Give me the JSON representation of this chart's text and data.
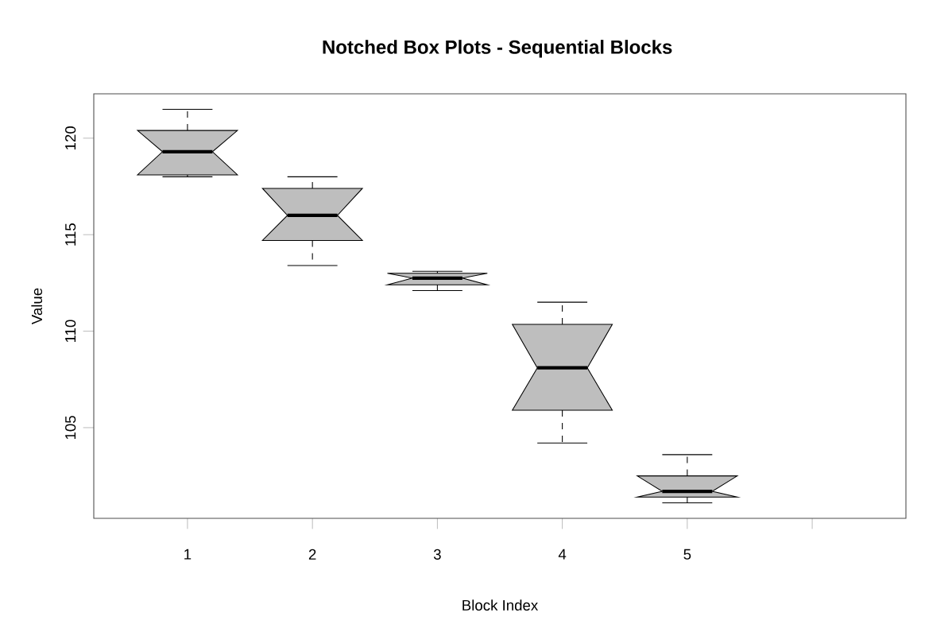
{
  "chart_data": {
    "type": "box",
    "title": "Notched Box Plots - Sequential Blocks",
    "xlabel": "Block Index",
    "ylabel": "Value",
    "categories": [
      "1",
      "2",
      "3",
      "4",
      "5",
      null
    ],
    "series": [
      {
        "color": "#bebebe",
        "boxes": [
          {
            "low": 118.0,
            "q1": 118.1,
            "median": 119.3,
            "q3": 120.4,
            "high": 121.5
          },
          {
            "low": 113.4,
            "q1": 114.7,
            "median": 116.0,
            "q3": 117.4,
            "high": 118.0
          },
          {
            "low": 112.1,
            "q1": 112.4,
            "median": 112.75,
            "q3": 113.0,
            "high": 113.1
          },
          {
            "low": 104.2,
            "q1": 105.9,
            "median": 108.1,
            "q3": 110.35,
            "high": 111.5
          },
          {
            "low": 101.1,
            "q1": 101.4,
            "median": 101.7,
            "q3": 102.5,
            "high": 103.6
          },
          null
        ]
      }
    ],
    "ylim": [
      100.3,
      122.3
    ],
    "yticks": [
      105,
      110,
      115,
      120
    ]
  }
}
